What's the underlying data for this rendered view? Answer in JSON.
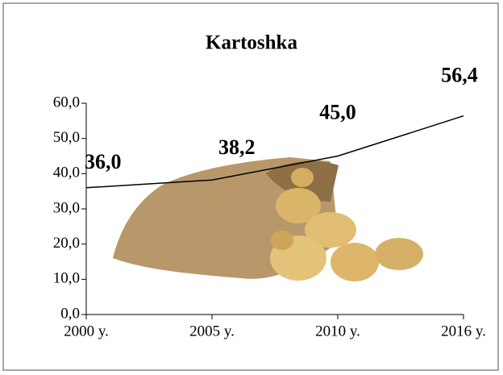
{
  "chart_data": {
    "type": "line",
    "title": "Kartoshka",
    "categories": [
      "2000 y.",
      "2005 y.",
      "2010 y.",
      "2016 y."
    ],
    "series": [
      {
        "name": "Kartoshka",
        "color": "#000000",
        "values": [
          36.0,
          38.2,
          45.0,
          56.4
        ],
        "value_labels": [
          "36,0",
          "38,2",
          "45,0",
          "56,4"
        ]
      }
    ],
    "ylim": [
      0,
      60
    ],
    "yticks": [
      {
        "value": 0,
        "label": "0,0"
      },
      {
        "value": 10,
        "label": "10,0"
      },
      {
        "value": 20,
        "label": "20,0"
      },
      {
        "value": 30,
        "label": "30,0"
      },
      {
        "value": 40,
        "label": "40,0"
      },
      {
        "value": 50,
        "label": "50,0"
      },
      {
        "value": 60,
        "label": "60,0"
      }
    ],
    "grid": false
  }
}
